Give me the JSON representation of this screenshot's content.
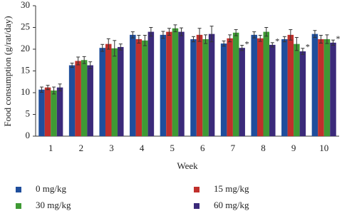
{
  "chart_data": {
    "type": "bar",
    "y_label": "Food consumption (g/rat/day)",
    "x_label": "Week",
    "categories": [
      "1",
      "2",
      "3",
      "4",
      "5",
      "6",
      "7",
      "8",
      "9",
      "10"
    ],
    "series": [
      {
        "name": "0 mg/kg",
        "color": "#1f4e9c",
        "values": [
          10.7,
          16.3,
          20.3,
          23.3,
          23.3,
          22.3,
          21.3,
          23.3,
          22.3,
          23.5
        ],
        "errors": [
          0.6,
          0.5,
          0.8,
          0.7,
          0.8,
          0.6,
          0.6,
          0.7,
          0.6,
          0.8
        ],
        "markers": [
          null,
          null,
          null,
          null,
          null,
          null,
          null,
          null,
          null,
          null
        ]
      },
      {
        "name": "15 mg/kg",
        "color": "#c0302c",
        "values": [
          11.2,
          17.3,
          21.2,
          22.3,
          24.0,
          23.3,
          22.5,
          22.5,
          23.3,
          22.3
        ],
        "errors": [
          0.5,
          0.9,
          1.2,
          0.9,
          0.8,
          1.5,
          0.8,
          0.7,
          1.2,
          0.9
        ],
        "markers": [
          null,
          null,
          null,
          null,
          null,
          null,
          null,
          null,
          null,
          null
        ]
      },
      {
        "name": "30 mg/kg",
        "color": "#3f9a34",
        "values": [
          10.5,
          17.5,
          20.2,
          22.0,
          24.8,
          22.3,
          23.8,
          24.0,
          21.2,
          22.3
        ],
        "errors": [
          0.8,
          0.8,
          1.8,
          1.2,
          0.8,
          1.0,
          0.7,
          1.0,
          1.5,
          1.0
        ],
        "markers": [
          null,
          null,
          null,
          null,
          null,
          null,
          null,
          null,
          null,
          null
        ]
      },
      {
        "name": "60 mg/kg",
        "color": "#3b2a7a",
        "values": [
          11.2,
          16.3,
          20.5,
          24.0,
          24.0,
          23.5,
          20.3,
          21.0,
          19.5,
          21.5
        ],
        "errors": [
          0.8,
          0.8,
          0.7,
          1.0,
          0.9,
          1.8,
          0.6,
          0.5,
          0.7,
          0.6
        ],
        "markers": [
          null,
          null,
          null,
          null,
          null,
          null,
          "*",
          "*",
          "*",
          "*"
        ]
      }
    ],
    "ylim": [
      0,
      30
    ],
    "yticks": [
      0,
      5,
      10,
      15,
      20,
      25,
      30
    ],
    "grid": false
  }
}
